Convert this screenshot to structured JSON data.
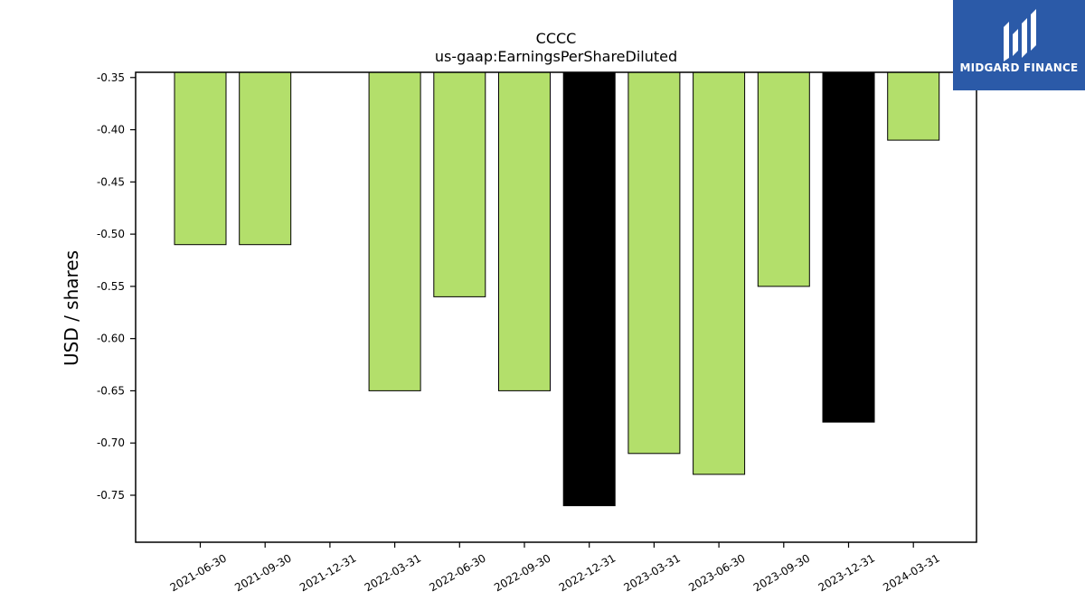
{
  "brand": {
    "name": "MIDGARD FINANCE",
    "background": "#2b5aa8"
  },
  "chart_data": {
    "type": "bar",
    "title": "CCCC",
    "subtitle": "us-gaap:EarningsPerShareDiluted",
    "xlabel": "",
    "ylabel": "USD / shares",
    "categories": [
      "2021-06-30",
      "2021-09-30",
      "2021-12-31",
      "2022-03-31",
      "2022-06-30",
      "2022-09-30",
      "2022-12-31",
      "2023-03-31",
      "2023-06-30",
      "2023-09-30",
      "2023-12-31",
      "2024-03-31"
    ],
    "values": [
      -0.51,
      -0.51,
      null,
      -0.65,
      -0.56,
      -0.65,
      -0.76,
      -0.71,
      -0.73,
      -0.55,
      -0.68,
      -0.41
    ],
    "bar_colors": [
      "#b3df6b",
      "#b3df6b",
      null,
      "#b3df6b",
      "#b3df6b",
      "#b3df6b",
      "#000000",
      "#b3df6b",
      "#b3df6b",
      "#b3df6b",
      "#000000",
      "#b3df6b"
    ],
    "yticks": [
      "-0.35",
      "-0.40",
      "-0.45",
      "-0.50",
      "-0.55",
      "-0.60",
      "-0.65",
      "-0.70",
      "-0.75"
    ],
    "ylim": [
      -0.795,
      -0.345
    ],
    "grid": false,
    "legend": "none"
  }
}
